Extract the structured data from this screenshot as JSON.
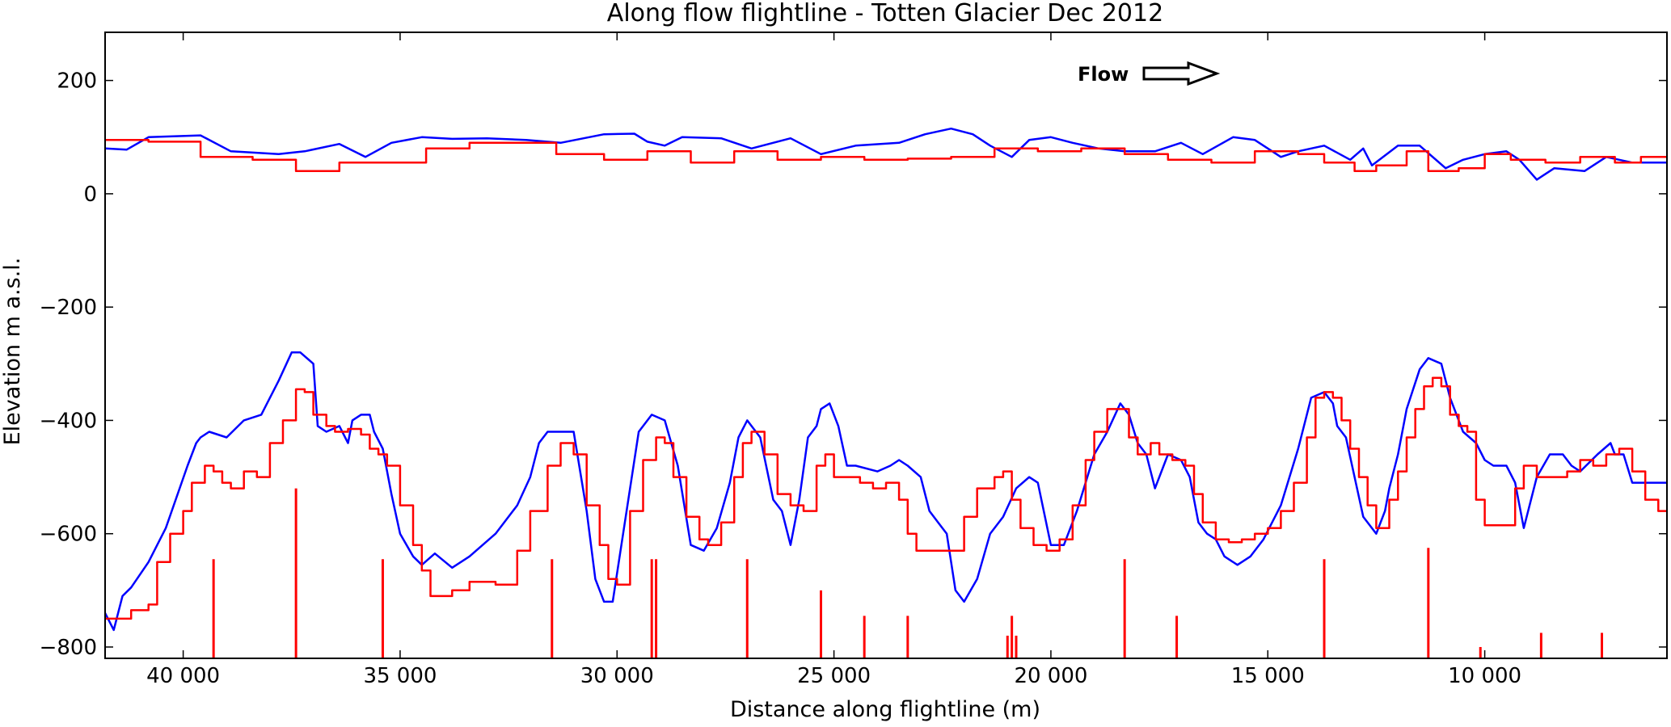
{
  "chart_data": {
    "type": "line",
    "title": "Along flow flightline - Totten Glacier Dec 2012",
    "xlabel": "Distance along flightline (m)",
    "ylabel": "Elevation m a.s.l.",
    "xlim": [
      41800,
      5800
    ],
    "ylim": [
      -820,
      285
    ],
    "x_reversed": true,
    "grid": false,
    "legend": "none",
    "x_ticks": [
      {
        "value": 40000,
        "label": "40 000"
      },
      {
        "value": 35000,
        "label": "35 000"
      },
      {
        "value": 30000,
        "label": "30 000"
      },
      {
        "value": 25000,
        "label": "25 000"
      },
      {
        "value": 20000,
        "label": "20 000"
      },
      {
        "value": 15000,
        "label": "15 000"
      },
      {
        "value": 10000,
        "label": "10 000"
      }
    ],
    "y_ticks": [
      {
        "value": 200,
        "label": "200"
      },
      {
        "value": 0,
        "label": "0"
      },
      {
        "value": -200,
        "label": "−200"
      },
      {
        "value": -400,
        "label": "−400"
      },
      {
        "value": -600,
        "label": "−600"
      },
      {
        "value": -800,
        "label": "−800"
      }
    ],
    "annotation": {
      "text": "Flow",
      "direction": "right"
    },
    "colors": {
      "blue": "#0000ff",
      "red": "#ff0000",
      "axis": "#000000"
    },
    "series": [
      {
        "key": "blue_surface",
        "color": "#0000ff",
        "step": false,
        "x": [
          41800,
          41300,
          40800,
          39600,
          38900,
          37800,
          37200,
          36400,
          35800,
          35200,
          34500,
          33800,
          33000,
          32100,
          31300,
          30300,
          29600,
          29300,
          28900,
          28500,
          27600,
          26900,
          26000,
          25300,
          24500,
          23500,
          22900,
          22300,
          21800,
          21400,
          20900,
          20500,
          20000,
          19500,
          18900,
          18300,
          17600,
          17000,
          16500,
          15800,
          15300,
          14700,
          14300,
          13700,
          13100,
          12800,
          12600,
          12000,
          11500,
          10900,
          10500,
          10000,
          9500,
          9200,
          8800,
          8400,
          7700,
          7200,
          6600,
          5800
        ],
        "y": [
          80,
          78,
          100,
          103,
          75,
          70,
          75,
          88,
          65,
          90,
          100,
          97,
          98,
          95,
          90,
          105,
          106,
          92,
          85,
          100,
          98,
          80,
          98,
          70,
          85,
          90,
          105,
          115,
          105,
          85,
          65,
          95,
          100,
          90,
          80,
          75,
          75,
          90,
          70,
          100,
          95,
          65,
          75,
          85,
          60,
          80,
          50,
          85,
          85,
          45,
          60,
          70,
          75,
          60,
          25,
          45,
          40,
          65,
          55,
          55
        ]
      },
      {
        "key": "red_surface",
        "color": "#ff0000",
        "step": true,
        "x": [
          41800,
          40800,
          39600,
          38400,
          37400,
          36400,
          35400,
          34400,
          33400,
          32400,
          31400,
          30300,
          29300,
          28300,
          27300,
          26300,
          25300,
          24300,
          23300,
          22300,
          21300,
          20300,
          19300,
          18300,
          17300,
          16300,
          15300,
          14300,
          13700,
          13000,
          12500,
          11800,
          11300,
          10600,
          10000,
          9400,
          8600,
          7800,
          7000,
          6400,
          5800
        ],
        "y": [
          95,
          92,
          65,
          60,
          40,
          55,
          55,
          80,
          90,
          90,
          70,
          60,
          75,
          55,
          75,
          60,
          65,
          60,
          62,
          65,
          80,
          75,
          80,
          70,
          60,
          55,
          75,
          70,
          55,
          40,
          50,
          75,
          40,
          45,
          70,
          60,
          55,
          65,
          55,
          65,
          65
        ]
      },
      {
        "key": "blue_bed",
        "color": "#0000ff",
        "step": false,
        "x": [
          41800,
          41600,
          41400,
          41200,
          40800,
          40400,
          39900,
          39700,
          39600,
          39400,
          39000,
          38600,
          38200,
          37800,
          37500,
          37300,
          37000,
          36900,
          36700,
          36400,
          36200,
          36100,
          35900,
          35700,
          35600,
          35400,
          35200,
          35000,
          34700,
          34500,
          34200,
          33800,
          33400,
          32800,
          32300,
          32000,
          31800,
          31600,
          31300,
          31000,
          30700,
          30500,
          30300,
          30100,
          29800,
          29500,
          29200,
          28900,
          28600,
          28300,
          28000,
          27700,
          27400,
          27200,
          27000,
          26700,
          26400,
          26200,
          26000,
          25800,
          25600,
          25400,
          25300,
          25100,
          24900,
          24700,
          24500,
          24000,
          23700,
          23500,
          23300,
          23000,
          22800,
          22600,
          22400,
          22200,
          22000,
          21700,
          21400,
          21100,
          20800,
          20500,
          20300,
          20000,
          19700,
          19400,
          19000,
          18700,
          18400,
          18200,
          18000,
          17800,
          17600,
          17300,
          17000,
          16800,
          16600,
          16400,
          16200,
          16000,
          15700,
          15400,
          15100,
          14900,
          14700,
          14300,
          14000,
          13700,
          13500,
          13400,
          13200,
          13000,
          12800,
          12500,
          12300,
          12200,
          12000,
          11800,
          11500,
          11300,
          11000,
          10800,
          10500,
          10200,
          10000,
          9800,
          9500,
          9300,
          9100,
          8800,
          8500,
          8200,
          8000,
          7800,
          7400,
          7100,
          7000,
          6800,
          6600,
          6200,
          5800
        ],
        "y": [
          -740,
          -770,
          -710,
          -695,
          -650,
          -590,
          -480,
          -440,
          -430,
          -420,
          -430,
          -400,
          -390,
          -330,
          -280,
          -280,
          -300,
          -410,
          -420,
          -410,
          -440,
          -400,
          -390,
          -390,
          -420,
          -450,
          -530,
          -600,
          -640,
          -655,
          -635,
          -660,
          -640,
          -600,
          -550,
          -500,
          -440,
          -420,
          -420,
          -420,
          -560,
          -680,
          -720,
          -720,
          -570,
          -420,
          -390,
          -400,
          -480,
          -620,
          -630,
          -590,
          -510,
          -430,
          -400,
          -430,
          -540,
          -560,
          -620,
          -540,
          -430,
          -410,
          -380,
          -370,
          -410,
          -480,
          -480,
          -490,
          -480,
          -470,
          -480,
          -500,
          -560,
          -580,
          -600,
          -700,
          -720,
          -680,
          -600,
          -570,
          -520,
          -500,
          -510,
          -620,
          -620,
          -560,
          -460,
          -420,
          -370,
          -390,
          -440,
          -460,
          -520,
          -460,
          -470,
          -500,
          -580,
          -600,
          -610,
          -640,
          -655,
          -640,
          -610,
          -580,
          -550,
          -450,
          -360,
          -350,
          -370,
          -410,
          -430,
          -500,
          -570,
          -600,
          -560,
          -520,
          -460,
          -380,
          -310,
          -290,
          -300,
          -360,
          -420,
          -440,
          -470,
          -480,
          -480,
          -510,
          -590,
          -500,
          -460,
          -460,
          -480,
          -490,
          -460,
          -440,
          -460,
          -460,
          -510,
          -510,
          -510
        ]
      },
      {
        "key": "red_bed",
        "color": "#ff0000",
        "step": true,
        "x": [
          41800,
          41200,
          40800,
          40600,
          40300,
          40000,
          39800,
          39500,
          39300,
          39100,
          38900,
          38600,
          38300,
          38000,
          37700,
          37400,
          37200,
          37000,
          36700,
          36500,
          36200,
          35900,
          35700,
          35500,
          35300,
          35000,
          34700,
          34500,
          34300,
          33800,
          33400,
          32800,
          32300,
          32000,
          31600,
          31300,
          31000,
          30700,
          30400,
          30200,
          30000,
          29700,
          29400,
          29100,
          28900,
          28700,
          28400,
          28100,
          27900,
          27600,
          27300,
          27100,
          26900,
          26600,
          26300,
          26000,
          25700,
          25400,
          25200,
          25000,
          24700,
          24400,
          24100,
          23800,
          23500,
          23300,
          23100,
          22900,
          22700,
          22500,
          22300,
          22000,
          21700,
          21300,
          21100,
          20900,
          20700,
          20400,
          20100,
          19800,
          19500,
          19200,
          19000,
          18700,
          18400,
          18200,
          18000,
          17700,
          17500,
          17200,
          16900,
          16700,
          16500,
          16200,
          15900,
          15600,
          15300,
          15000,
          14700,
          14400,
          14100,
          13900,
          13700,
          13500,
          13300,
          13100,
          12900,
          12700,
          12500,
          12200,
          12000,
          11800,
          11600,
          11400,
          11200,
          11000,
          10800,
          10600,
          10400,
          10200,
          10000,
          9800,
          9500,
          9300,
          9100,
          8800,
          8400,
          8100,
          7800,
          7500,
          7200,
          6900,
          6600,
          6300,
          6000,
          5800
        ],
        "y": [
          -750,
          -735,
          -725,
          -650,
          -600,
          -560,
          -510,
          -480,
          -490,
          -510,
          -520,
          -490,
          -500,
          -440,
          -400,
          -345,
          -350,
          -390,
          -410,
          -420,
          -415,
          -425,
          -450,
          -460,
          -480,
          -550,
          -620,
          -665,
          -710,
          -700,
          -685,
          -690,
          -630,
          -560,
          -480,
          -440,
          -460,
          -550,
          -620,
          -680,
          -690,
          -560,
          -470,
          -430,
          -440,
          -500,
          -570,
          -610,
          -620,
          -580,
          -500,
          -440,
          -420,
          -460,
          -530,
          -550,
          -560,
          -480,
          -460,
          -500,
          -500,
          -510,
          -520,
          -510,
          -540,
          -600,
          -630,
          -630,
          -630,
          -630,
          -630,
          -570,
          -520,
          -500,
          -490,
          -540,
          -590,
          -620,
          -630,
          -610,
          -550,
          -470,
          -420,
          -380,
          -380,
          -430,
          -460,
          -440,
          -460,
          -470,
          -480,
          -530,
          -580,
          -610,
          -615,
          -610,
          -600,
          -590,
          -560,
          -510,
          -430,
          -360,
          -350,
          -360,
          -400,
          -450,
          -500,
          -550,
          -590,
          -540,
          -490,
          -430,
          -380,
          -340,
          -325,
          -340,
          -390,
          -410,
          -420,
          -540,
          -585,
          -585,
          -585,
          -520,
          -480,
          -500,
          -500,
          -490,
          -470,
          -480,
          -460,
          -450,
          -490,
          -540,
          -560,
          -560
        ]
      }
    ],
    "spikes": {
      "color": "#ff0000",
      "bottom": -820,
      "x": [
        39300,
        37400,
        35400,
        31500,
        29200,
        29100,
        27000,
        25300,
        24300,
        23300,
        21000,
        20900,
        20800,
        18300,
        17100,
        13700,
        11300,
        10100,
        8700,
        7300
      ],
      "top": [
        -645,
        -520,
        -645,
        -645,
        -645,
        -645,
        -645,
        -700,
        -745,
        -745,
        -780,
        -745,
        -780,
        -645,
        -745,
        -645,
        -625,
        -800,
        -775,
        -775
      ]
    }
  }
}
